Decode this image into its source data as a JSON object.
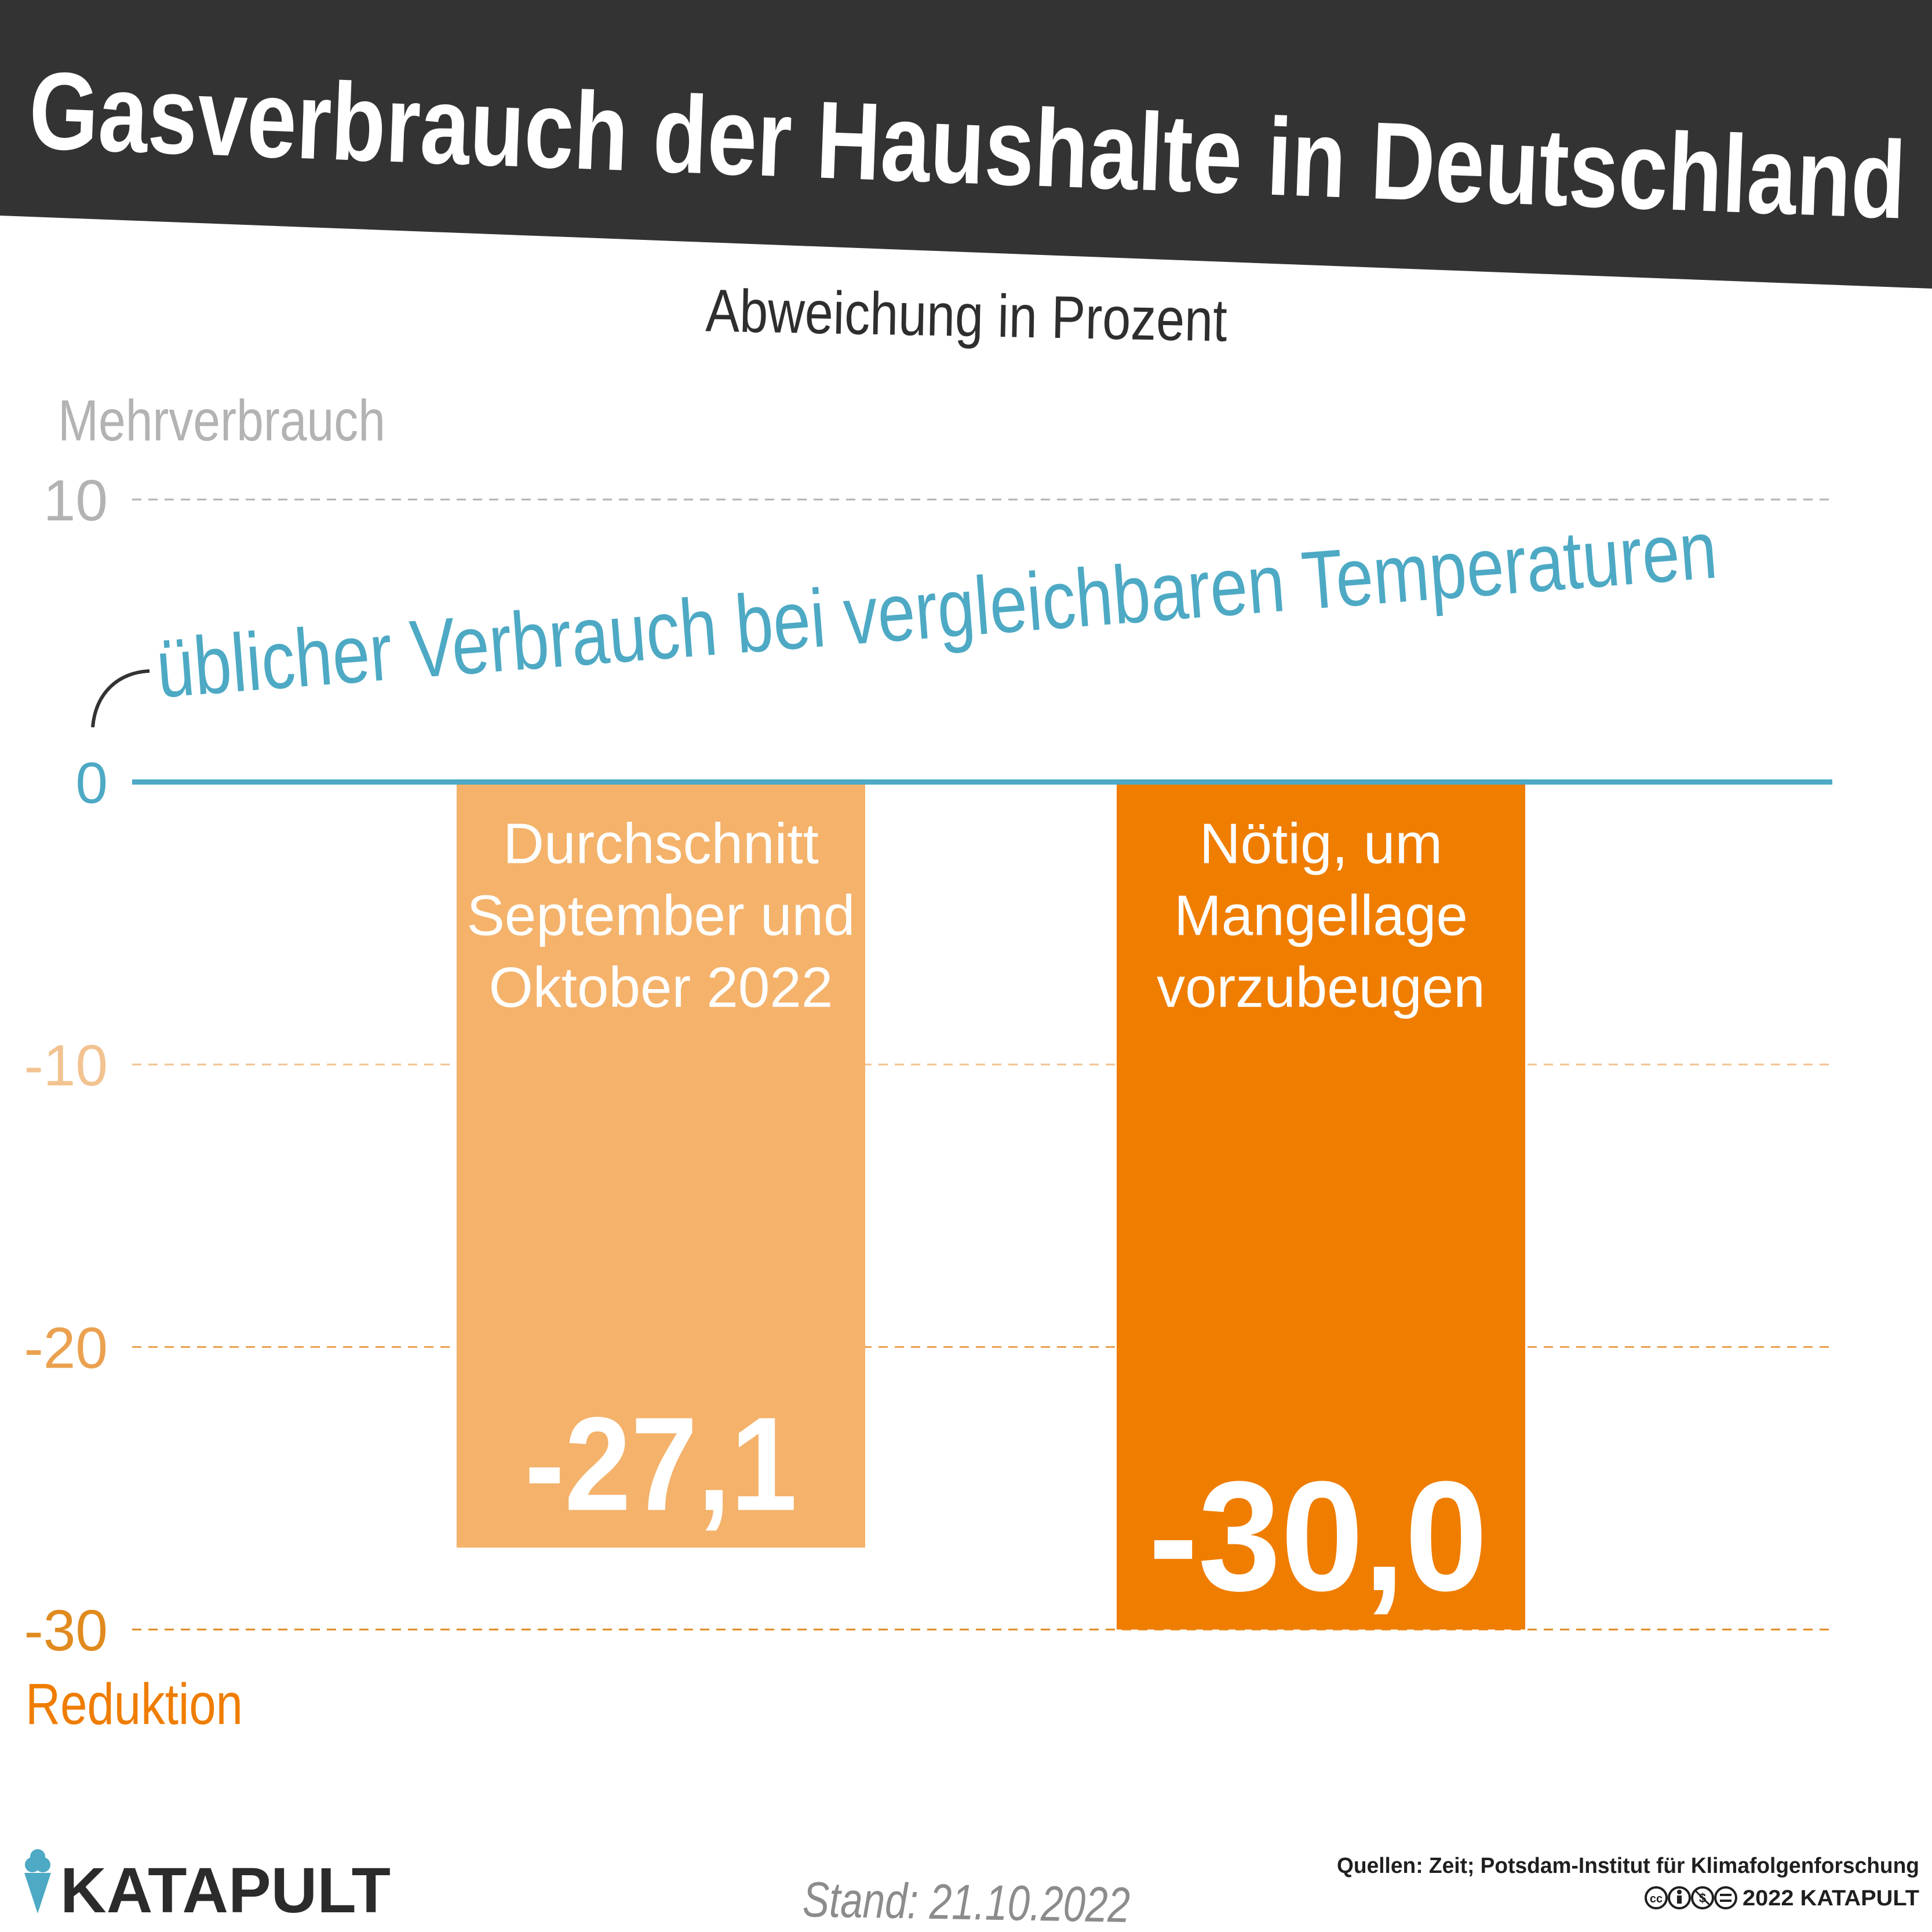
{
  "header": {
    "title": "Gasverbrauch der Haushalte in Deutschland",
    "subtitle": "Abweichung in Prozent"
  },
  "axis": {
    "top_label": "Mehrverbrauch",
    "bottom_label": "Reduktion",
    "baseline_annotation": "üblicher Verbrauch bei vergleichbaren Temperaturen"
  },
  "chart_data": {
    "type": "bar",
    "title": "Gasverbrauch der Haushalte in Deutschland",
    "subtitle": "Abweichung in Prozent",
    "ylabel": "",
    "xlabel": "",
    "ylim": [
      -30,
      10
    ],
    "yticks": [
      10,
      0,
      -10,
      -20,
      -30
    ],
    "ytick_labels": [
      "10",
      "0",
      "-10",
      "-20",
      "-30"
    ],
    "grid": true,
    "categories": [
      "Durchschnitt September und Oktober 2022",
      "Nötig, um Mangellage vorzubeugen"
    ],
    "category_lines": [
      [
        "Durchschnitt",
        "September und",
        "Oktober 2022"
      ],
      [
        "Nötig, um",
        "Mangellage",
        "vorzubeugen"
      ]
    ],
    "values": [
      -27.1,
      -30.0
    ],
    "value_labels": [
      "-27,1",
      "-30,0"
    ],
    "colors": [
      "#f4b26b",
      "#ef7d00"
    ]
  },
  "colors": {
    "header_bg": "#333333",
    "baseline": "#4da9c4",
    "positive_tick": "#b3b3b3",
    "negative_tick_light": "#f2c391",
    "negative_tick_mid": "#eba14f",
    "negative_tick_dark": "#e08a1f",
    "reduction_label": "#ef7d00"
  },
  "footer": {
    "brand": "KATAPULT",
    "brand_icon": "ice-cream-cone-logo-icon",
    "date": "Stand: 21.10.2022",
    "sources": "Quellen:  Zeit; Potsdam-Institut für Klimafolgenforschung",
    "license_icons": [
      "cc-icon",
      "by-icon",
      "nc-icon",
      "nd-icon"
    ],
    "copyright": "2022 KATAPULT"
  }
}
